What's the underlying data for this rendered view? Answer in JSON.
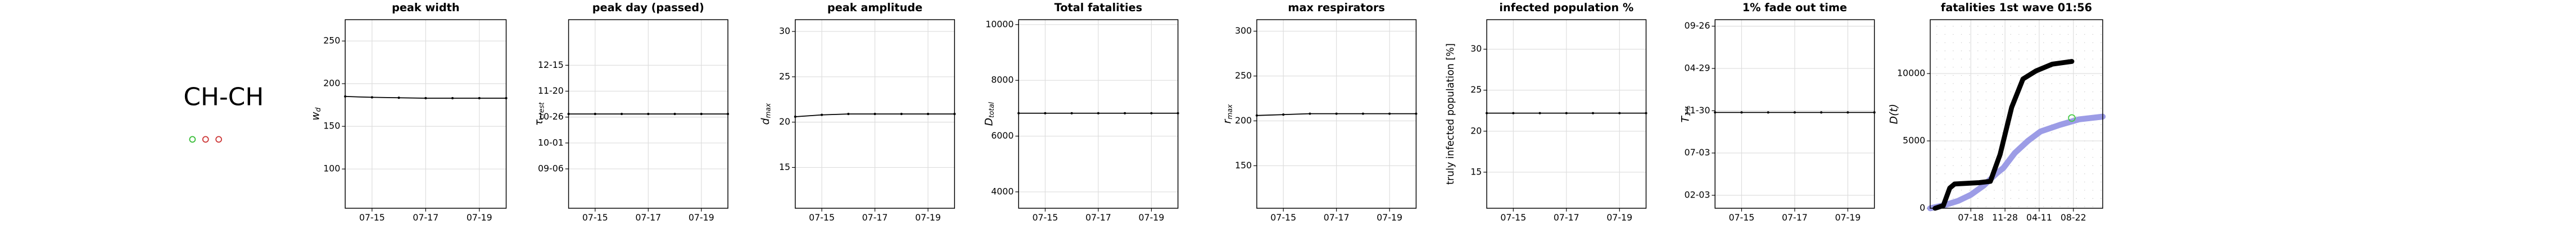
{
  "label": "CH-CH",
  "chart_data": [
    {
      "type": "line",
      "title": "peak width",
      "ylabel": "w",
      "ylabel_sub": "d",
      "x": [
        "07-14",
        "07-15",
        "07-16",
        "07-17",
        "07-18",
        "07-19",
        "07-20"
      ],
      "values": [
        185,
        184,
        183.5,
        183,
        183,
        183,
        183
      ],
      "xticks": [
        "07-15",
        "07-17",
        "07-19"
      ],
      "ylim": [
        54,
        275
      ],
      "yticks": [
        100,
        150,
        200,
        250
      ],
      "color": "#000000",
      "grid": true
    },
    {
      "type": "line",
      "title": "peak day (passed)",
      "ylabel": "τ",
      "ylabel_sub": "crest",
      "x": [
        "07-14",
        "07-15",
        "07-16",
        "07-17",
        "07-18",
        "07-19",
        "07-20"
      ],
      "values": [
        302,
        302,
        302,
        302,
        302,
        302,
        302
      ],
      "xticks": [
        "07-15",
        "07-17",
        "07-19"
      ],
      "ylim": [
        211,
        393
      ],
      "yticks": [
        {
          "value": 249,
          "label": "09-06"
        },
        {
          "value": 274,
          "label": "10-01"
        },
        {
          "value": 299,
          "label": "10-26"
        },
        {
          "value": 324,
          "label": "11-20"
        },
        {
          "value": 349,
          "label": "12-15"
        }
      ],
      "color": "#000000",
      "grid": true
    },
    {
      "type": "line",
      "title": "peak amplitude",
      "ylabel": "d",
      "ylabel_sub": "max",
      "x": [
        "07-14",
        "07-15",
        "07-16",
        "07-17",
        "07-18",
        "07-19",
        "07-20"
      ],
      "values": [
        20.6,
        20.8,
        20.9,
        20.9,
        20.9,
        20.9,
        20.9
      ],
      "xticks": [
        "07-15",
        "07-17",
        "07-19"
      ],
      "ylim": [
        10.5,
        31.3
      ],
      "yticks": [
        15,
        20,
        25,
        30
      ],
      "color": "#000000",
      "grid": true
    },
    {
      "type": "line",
      "title": "Total fatalities",
      "ylabel": "D",
      "ylabel_sub": "total",
      "x": [
        "07-14",
        "07-15",
        "07-16",
        "07-17",
        "07-18",
        "07-19",
        "07-20"
      ],
      "values": [
        6820,
        6820,
        6820,
        6820,
        6820,
        6820,
        6820
      ],
      "xticks": [
        "07-15",
        "07-17",
        "07-19"
      ],
      "ylim": [
        3412,
        10176
      ],
      "yticks": [
        4000,
        6000,
        8000,
        10000
      ],
      "color": "#000000",
      "grid": true
    },
    {
      "type": "line",
      "title": "max respirators",
      "ylabel": "r",
      "ylabel_sub": "max",
      "x": [
        "07-14",
        "07-15",
        "07-16",
        "07-17",
        "07-18",
        "07-19",
        "07-20"
      ],
      "values": [
        206,
        207,
        208,
        208,
        208,
        208,
        208
      ],
      "xticks": [
        "07-15",
        "07-17",
        "07-19"
      ],
      "ylim": [
        102.6,
        312.8
      ],
      "yticks": [
        150,
        200,
        250,
        300
      ],
      "color": "#000000",
      "grid": true
    },
    {
      "type": "line",
      "title": "infected population %",
      "ylabel": "truly infected population [%]",
      "x": [
        "07-14",
        "07-15",
        "07-16",
        "07-17",
        "07-18",
        "07-19",
        "07-20"
      ],
      "values": [
        22.2,
        22.2,
        22.2,
        22.2,
        22.2,
        22.2,
        22.2
      ],
      "xticks": [
        "07-15",
        "07-17",
        "07-19"
      ],
      "ylim": [
        10.6,
        33.6
      ],
      "yticks": [
        15,
        20,
        25,
        30
      ],
      "color": "#000000",
      "grid": true
    },
    {
      "type": "line",
      "title": "1% fade out time",
      "ylabel": "T",
      "ylabel_sub": "1%",
      "x": [
        "07-14",
        "07-15",
        "07-16",
        "07-17",
        "07-18",
        "07-19",
        "07-20"
      ],
      "values": [
        693,
        693,
        693,
        693,
        693,
        693,
        693
      ],
      "xticks": [
        "07-15",
        "07-17",
        "07-19"
      ],
      "ylim": [
        353,
        1022
      ],
      "yticks": [
        {
          "value": 399,
          "label": "02-03"
        },
        {
          "value": 549,
          "label": "07-03"
        },
        {
          "value": 699,
          "label": "11-30"
        },
        {
          "value": 849,
          "label": "04-29"
        },
        {
          "value": 999,
          "label": "09-26"
        }
      ],
      "color": "#000000",
      "grid": true
    },
    {
      "type": "line",
      "title": "fatalities 1st wave 01:56",
      "ylabel": "D(t)",
      "series": [
        {
          "color": "#9c9ce6",
          "width": 3.6,
          "x": [
            41,
            100,
            150,
            199,
            250,
            300,
            326,
            370,
            421,
            470,
            547,
            620,
            712
          ],
          "values": [
            0,
            250,
            550,
            1000,
            1700,
            2600,
            3000,
            4100,
            5000,
            5700,
            6200,
            6600,
            6800
          ]
        },
        {
          "color": "#000000",
          "width": 3,
          "x": [
            60,
            92,
            117,
            136,
            231,
            275,
            313,
            358,
            402,
            453,
            516,
            592
          ],
          "values": [
            0,
            200,
            1500,
            1800,
            1900,
            2000,
            4000,
            7500,
            9600,
            10200,
            10700,
            10900
          ]
        },
        {
          "color": "#44cc44",
          "mode": "marker",
          "x": [
            592
          ],
          "values": [
            6700
          ]
        }
      ],
      "xlim": [
        41,
        712
      ],
      "xticks": [
        {
          "value": 199,
          "label": "07-18"
        },
        {
          "value": 332,
          "label": "11-28"
        },
        {
          "value": 465,
          "label": "04-11"
        },
        {
          "value": 598,
          "label": "08-22"
        }
      ],
      "ylim": [
        0,
        14000
      ],
      "yticks": [
        0,
        5000,
        10000
      ],
      "grid": true
    }
  ]
}
